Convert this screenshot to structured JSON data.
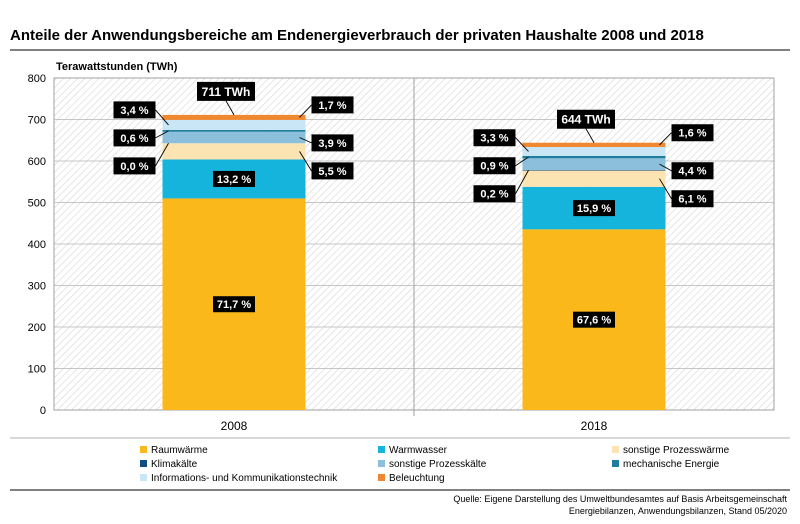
{
  "chart_data": {
    "type": "bar",
    "stacked": true,
    "title": "Anteile der Anwendungsbereiche am Endenergieverbrauch der privaten Haushalte 2008 und 2018",
    "ylabel": "Terawattstunden (TWh)",
    "xlabel": "",
    "ylim": [
      0,
      800
    ],
    "yticks": [
      "0",
      "100",
      "200",
      "300",
      "400",
      "500",
      "600",
      "700",
      "800"
    ],
    "categories": [
      "2008",
      "2018"
    ],
    "totals": [
      "711 TWh",
      "644 TWh"
    ],
    "series": [
      {
        "name": "Raumwärme",
        "color": "#FBB81B",
        "values": [
          509.8,
          435.3
        ],
        "labels": [
          "71,7 %",
          "67,6 %"
        ]
      },
      {
        "name": "Warmwasser",
        "color": "#14B4DC",
        "values": [
          93.9,
          102.4
        ],
        "labels": [
          "13,2 %",
          "15,9 %"
        ]
      },
      {
        "name": "sonstige Prozesswärme",
        "color": "#FCE3B2",
        "values": [
          39.1,
          39.3
        ],
        "labels": [
          "5,5 %",
          "6,1 %"
        ]
      },
      {
        "name": "Klimakälte",
        "color": "#0F4C7F",
        "values": [
          0.0,
          1.3
        ],
        "labels": [
          "0,0 %",
          "0,2 %"
        ]
      },
      {
        "name": "sonstige Prozesskälte",
        "color": "#8BBFDB",
        "values": [
          27.7,
          28.3
        ],
        "labels": [
          "3,9 %",
          "4,4 %"
        ]
      },
      {
        "name": "mechanische Energie",
        "color": "#1F7D9E",
        "values": [
          4.3,
          5.8
        ],
        "labels": [
          "0,6 %",
          "0,9 %"
        ]
      },
      {
        "name": "Informations- und Kommunikationstechnik",
        "color": "#C8E6F5",
        "values": [
          24.2,
          21.3
        ],
        "labels": [
          "3,4 %",
          "3,3 %"
        ]
      },
      {
        "name": "Beleuchtung",
        "color": "#F08830",
        "values": [
          12.1,
          10.3
        ],
        "labels": [
          "1,7 %",
          "1,6 %"
        ]
      }
    ],
    "legend": "bottom"
  },
  "source": {
    "line1": "Quelle: Eigene Darstellung des Umweltbundesamtes auf Basis Arbeitsgemeinschaft",
    "line2": "Energiebilanzen, Anwendungsbilanzen, Stand 05/2020"
  }
}
